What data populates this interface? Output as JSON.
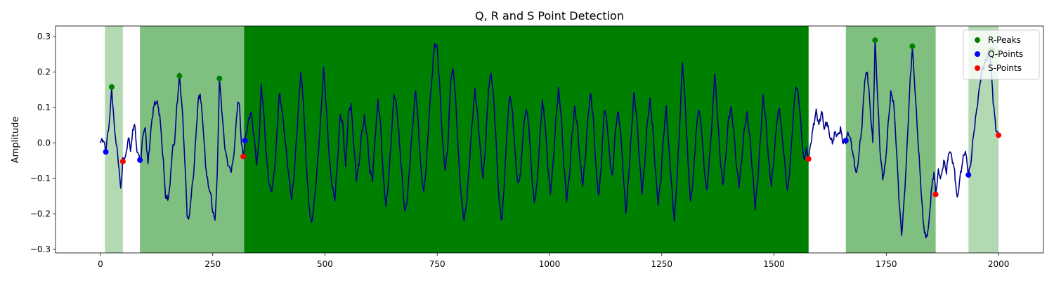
{
  "chart_data": {
    "type": "line",
    "title": "Q, R and S Point Detection",
    "xlabel": "",
    "ylabel": "Amplitude",
    "xlim": [
      -100,
      2100
    ],
    "ylim": [
      -0.31,
      0.33
    ],
    "xticks": [
      0,
      250,
      500,
      750,
      1000,
      1250,
      1500,
      1750,
      2000
    ],
    "yticks": [
      -0.3,
      -0.2,
      -0.1,
      0.0,
      0.1,
      0.2,
      0.3
    ],
    "ytick_labels": [
      "−0.3",
      "−0.2",
      "−0.1",
      "0.0",
      "0.1",
      "0.2",
      "0.3"
    ],
    "grid": false,
    "legend_position": "top-right",
    "signal_color": "#00008b",
    "spans": [
      {
        "x0": 10,
        "x1": 50,
        "opacity": 0.3
      },
      {
        "x0": 88,
        "x1": 320,
        "opacity": 0.5
      },
      {
        "x0": 320,
        "x1": 1577,
        "opacity": 1.0
      },
      {
        "x0": 1660,
        "x1": 1860,
        "opacity": 0.5
      },
      {
        "x0": 1933,
        "x1": 2000,
        "opacity": 0.3
      }
    ],
    "signal_keypoints": [
      [
        0,
        0.0
      ],
      [
        5,
        0.012
      ],
      [
        8,
        0.0
      ],
      [
        12,
        -0.02
      ],
      [
        18,
        0.04
      ],
      [
        22,
        0.09
      ],
      [
        25,
        0.158
      ],
      [
        30,
        0.06
      ],
      [
        35,
        0.0
      ],
      [
        40,
        -0.05
      ],
      [
        45,
        -0.13
      ],
      [
        50,
        -0.05
      ],
      [
        58,
        -0.03
      ],
      [
        62,
        0.02
      ],
      [
        67,
        -0.02
      ],
      [
        72,
        0.03
      ],
      [
        76,
        0.06
      ],
      [
        80,
        -0.01
      ],
      [
        86,
        -0.04
      ],
      [
        90,
        -0.05
      ],
      [
        95,
        0.03
      ],
      [
        100,
        0.04
      ],
      [
        106,
        -0.06
      ],
      [
        112,
        0.03
      ],
      [
        118,
        0.1
      ],
      [
        125,
        0.12
      ],
      [
        132,
        0.08
      ],
      [
        140,
        -0.05
      ],
      [
        145,
        -0.15
      ],
      [
        150,
        -0.16
      ],
      [
        155,
        -0.12
      ],
      [
        160,
        -0.02
      ],
      [
        165,
        0.0
      ],
      [
        170,
        0.1
      ],
      [
        176,
        0.189
      ],
      [
        182,
        0.1
      ],
      [
        188,
        -0.05
      ],
      [
        193,
        -0.2
      ],
      [
        197,
        -0.22
      ],
      [
        202,
        -0.15
      ],
      [
        208,
        -0.08
      ],
      [
        214,
        0.05
      ],
      [
        218,
        0.12
      ],
      [
        222,
        0.14
      ],
      [
        228,
        0.06
      ],
      [
        234,
        -0.06
      ],
      [
        240,
        -0.12
      ],
      [
        245,
        -0.14
      ],
      [
        250,
        -0.19
      ],
      [
        255,
        -0.22
      ],
      [
        260,
        -0.1
      ],
      [
        265,
        0.182
      ],
      [
        270,
        0.1
      ],
      [
        276,
        0.0
      ],
      [
        282,
        -0.05
      ],
      [
        290,
        -0.08
      ],
      [
        296,
        -0.05
      ],
      [
        302,
        0.05
      ],
      [
        306,
        0.12
      ],
      [
        310,
        0.1
      ],
      [
        314,
        0.0
      ],
      [
        318,
        -0.038
      ],
      [
        322,
        0.007
      ],
      [
        328,
        0.05
      ],
      [
        335,
        0.09
      ],
      [
        342,
        0.02
      ],
      [
        348,
        -0.06
      ],
      [
        353,
        0.0
      ],
      [
        358,
        0.16
      ],
      [
        363,
        0.1
      ],
      [
        368,
        -0.01
      ],
      [
        374,
        -0.1
      ],
      [
        380,
        -0.14
      ],
      [
        386,
        -0.1
      ],
      [
        392,
        0.0
      ],
      [
        398,
        0.14
      ],
      [
        404,
        0.1
      ],
      [
        412,
        0.0
      ],
      [
        420,
        -0.1
      ],
      [
        426,
        -0.16
      ],
      [
        432,
        -0.08
      ],
      [
        440,
        0.08
      ],
      [
        446,
        0.2
      ],
      [
        452,
        0.12
      ],
      [
        458,
        -0.05
      ],
      [
        464,
        -0.17
      ],
      [
        470,
        -0.23
      ],
      [
        476,
        -0.17
      ],
      [
        484,
        -0.05
      ],
      [
        490,
        0.06
      ],
      [
        497,
        0.21
      ],
      [
        503,
        0.1
      ],
      [
        510,
        -0.05
      ],
      [
        516,
        -0.12
      ],
      [
        522,
        -0.16
      ],
      [
        528,
        -0.05
      ],
      [
        534,
        0.08
      ],
      [
        540,
        0.05
      ],
      [
        546,
        -0.07
      ],
      [
        552,
        0.08
      ],
      [
        558,
        0.11
      ],
      [
        564,
        0.0
      ],
      [
        570,
        -0.1
      ],
      [
        576,
        -0.06
      ],
      [
        582,
        0.03
      ],
      [
        588,
        0.07
      ],
      [
        594,
        0.02
      ],
      [
        600,
        -0.08
      ],
      [
        606,
        -0.1
      ],
      [
        612,
        0.02
      ],
      [
        618,
        0.12
      ],
      [
        624,
        0.05
      ],
      [
        630,
        -0.1
      ],
      [
        636,
        -0.18
      ],
      [
        642,
        -0.1
      ],
      [
        648,
        0.02
      ],
      [
        654,
        0.14
      ],
      [
        660,
        0.1
      ],
      [
        666,
        0.0
      ],
      [
        672,
        -0.1
      ],
      [
        678,
        -0.2
      ],
      [
        684,
        -0.15
      ],
      [
        690,
        -0.04
      ],
      [
        696,
        0.06
      ],
      [
        702,
        0.15
      ],
      [
        708,
        0.05
      ],
      [
        714,
        -0.08
      ],
      [
        720,
        -0.14
      ],
      [
        726,
        -0.06
      ],
      [
        732,
        0.08
      ],
      [
        738,
        0.18
      ],
      [
        744,
        0.28
      ],
      [
        750,
        0.27
      ],
      [
        756,
        0.15
      ],
      [
        762,
        0.0
      ],
      [
        768,
        -0.08
      ],
      [
        774,
        0.0
      ],
      [
        780,
        0.18
      ],
      [
        786,
        0.21
      ],
      [
        792,
        0.1
      ],
      [
        798,
        -0.05
      ],
      [
        804,
        -0.16
      ],
      [
        810,
        -0.22
      ],
      [
        816,
        -0.16
      ],
      [
        822,
        -0.05
      ],
      [
        828,
        0.06
      ],
      [
        834,
        0.15
      ],
      [
        840,
        0.08
      ],
      [
        846,
        -0.02
      ],
      [
        852,
        -0.1
      ],
      [
        858,
        0.0
      ],
      [
        864,
        0.15
      ],
      [
        870,
        0.2
      ],
      [
        876,
        0.12
      ],
      [
        882,
        -0.02
      ],
      [
        888,
        -0.17
      ],
      [
        894,
        -0.22
      ],
      [
        900,
        -0.1
      ],
      [
        906,
        0.05
      ],
      [
        912,
        0.14
      ],
      [
        918,
        0.08
      ],
      [
        924,
        -0.04
      ],
      [
        930,
        -0.12
      ],
      [
        936,
        -0.08
      ],
      [
        942,
        0.04
      ],
      [
        948,
        0.1
      ],
      [
        954,
        0.05
      ],
      [
        960,
        -0.08
      ],
      [
        966,
        -0.17
      ],
      [
        972,
        -0.12
      ],
      [
        978,
        0.0
      ],
      [
        984,
        0.12
      ],
      [
        990,
        0.06
      ],
      [
        996,
        -0.06
      ],
      [
        1002,
        -0.14
      ],
      [
        1008,
        -0.06
      ],
      [
        1014,
        0.06
      ],
      [
        1020,
        0.15
      ],
      [
        1026,
        0.08
      ],
      [
        1032,
        -0.06
      ],
      [
        1038,
        -0.16
      ],
      [
        1044,
        -0.1
      ],
      [
        1050,
        0.02
      ],
      [
        1056,
        0.1
      ],
      [
        1062,
        0.05
      ],
      [
        1068,
        -0.05
      ],
      [
        1074,
        -0.12
      ],
      [
        1080,
        -0.04
      ],
      [
        1086,
        0.08
      ],
      [
        1092,
        0.14
      ],
      [
        1098,
        0.06
      ],
      [
        1104,
        -0.08
      ],
      [
        1110,
        -0.15
      ],
      [
        1116,
        -0.05
      ],
      [
        1122,
        0.1
      ],
      [
        1128,
        0.06
      ],
      [
        1134,
        -0.04
      ],
      [
        1140,
        -0.1
      ],
      [
        1146,
        0.02
      ],
      [
        1152,
        0.09
      ],
      [
        1158,
        0.04
      ],
      [
        1164,
        -0.08
      ],
      [
        1170,
        -0.2
      ],
      [
        1176,
        -0.1
      ],
      [
        1182,
        0.02
      ],
      [
        1188,
        0.14
      ],
      [
        1194,
        0.08
      ],
      [
        1200,
        -0.04
      ],
      [
        1206,
        -0.14
      ],
      [
        1212,
        -0.06
      ],
      [
        1218,
        0.06
      ],
      [
        1224,
        0.12
      ],
      [
        1230,
        0.04
      ],
      [
        1236,
        -0.08
      ],
      [
        1242,
        -0.17
      ],
      [
        1248,
        -0.1
      ],
      [
        1254,
        0.02
      ],
      [
        1260,
        0.1
      ],
      [
        1266,
        -0.02
      ],
      [
        1272,
        -0.12
      ],
      [
        1278,
        -0.22
      ],
      [
        1284,
        -0.1
      ],
      [
        1290,
        0.05
      ],
      [
        1296,
        0.23
      ],
      [
        1302,
        0.12
      ],
      [
        1308,
        -0.04
      ],
      [
        1314,
        -0.17
      ],
      [
        1320,
        -0.1
      ],
      [
        1326,
        0.02
      ],
      [
        1332,
        0.1
      ],
      [
        1338,
        0.05
      ],
      [
        1344,
        -0.06
      ],
      [
        1350,
        -0.14
      ],
      [
        1356,
        -0.05
      ],
      [
        1362,
        0.06
      ],
      [
        1368,
        0.2
      ],
      [
        1374,
        0.08
      ],
      [
        1380,
        -0.04
      ],
      [
        1386,
        -0.12
      ],
      [
        1392,
        -0.05
      ],
      [
        1398,
        0.06
      ],
      [
        1404,
        0.1
      ],
      [
        1410,
        0.04
      ],
      [
        1416,
        -0.06
      ],
      [
        1422,
        -0.12
      ],
      [
        1428,
        -0.05
      ],
      [
        1434,
        0.04
      ],
      [
        1440,
        0.08
      ],
      [
        1446,
        0.02
      ],
      [
        1452,
        -0.08
      ],
      [
        1458,
        -0.18
      ],
      [
        1464,
        -0.1
      ],
      [
        1470,
        0.02
      ],
      [
        1476,
        0.13
      ],
      [
        1482,
        0.06
      ],
      [
        1488,
        -0.05
      ],
      [
        1494,
        -0.12
      ],
      [
        1500,
        -0.04
      ],
      [
        1506,
        0.06
      ],
      [
        1512,
        0.1
      ],
      [
        1518,
        0.02
      ],
      [
        1524,
        -0.06
      ],
      [
        1530,
        -0.14
      ],
      [
        1536,
        -0.06
      ],
      [
        1542,
        0.06
      ],
      [
        1548,
        0.16
      ],
      [
        1554,
        0.14
      ],
      [
        1560,
        0.05
      ],
      [
        1566,
        -0.05
      ],
      [
        1572,
        -0.02
      ],
      [
        1577,
        -0.045
      ],
      [
        1582,
        0.0
      ],
      [
        1588,
        0.05
      ],
      [
        1594,
        0.09
      ],
      [
        1600,
        0.05
      ],
      [
        1606,
        0.09
      ],
      [
        1612,
        0.04
      ],
      [
        1618,
        0.06
      ],
      [
        1624,
        0.02
      ],
      [
        1630,
        0.0
      ],
      [
        1636,
        0.03
      ],
      [
        1642,
        0.02
      ],
      [
        1648,
        0.04
      ],
      [
        1654,
        0.0
      ],
      [
        1660,
        0.007
      ],
      [
        1666,
        0.03
      ],
      [
        1672,
        0.0
      ],
      [
        1678,
        -0.05
      ],
      [
        1684,
        -0.09
      ],
      [
        1690,
        -0.02
      ],
      [
        1696,
        0.05
      ],
      [
        1702,
        0.18
      ],
      [
        1708,
        0.2
      ],
      [
        1714,
        0.1
      ],
      [
        1720,
        0.0
      ],
      [
        1725,
        0.29
      ],
      [
        1730,
        0.15
      ],
      [
        1736,
        -0.02
      ],
      [
        1742,
        -0.1
      ],
      [
        1748,
        -0.06
      ],
      [
        1754,
        0.05
      ],
      [
        1760,
        0.14
      ],
      [
        1766,
        0.12
      ],
      [
        1772,
        0.0
      ],
      [
        1778,
        -0.15
      ],
      [
        1784,
        -0.26
      ],
      [
        1790,
        -0.16
      ],
      [
        1796,
        -0.02
      ],
      [
        1802,
        0.15
      ],
      [
        1808,
        0.27
      ],
      [
        1814,
        0.15
      ],
      [
        1820,
        0.02
      ],
      [
        1826,
        -0.1
      ],
      [
        1832,
        -0.22
      ],
      [
        1838,
        -0.27
      ],
      [
        1844,
        -0.24
      ],
      [
        1850,
        -0.14
      ],
      [
        1856,
        -0.08
      ],
      [
        1860,
        -0.145
      ],
      [
        1866,
        -0.08
      ],
      [
        1872,
        -0.1
      ],
      [
        1878,
        -0.05
      ],
      [
        1884,
        -0.08
      ],
      [
        1890,
        -0.02
      ],
      [
        1896,
        -0.04
      ],
      [
        1902,
        -0.08
      ],
      [
        1908,
        -0.16
      ],
      [
        1914,
        -0.1
      ],
      [
        1920,
        -0.05
      ],
      [
        1926,
        -0.02
      ],
      [
        1933,
        -0.09
      ],
      [
        1938,
        -0.06
      ],
      [
        1944,
        0.02
      ],
      [
        1950,
        0.08
      ],
      [
        1956,
        0.14
      ],
      [
        1962,
        0.2
      ],
      [
        1968,
        0.22
      ],
      [
        1974,
        0.24
      ],
      [
        1980,
        0.26
      ],
      [
        1984,
        0.2
      ],
      [
        1988,
        0.12
      ],
      [
        1994,
        0.04
      ],
      [
        2000,
        0.022
      ]
    ],
    "series": [
      {
        "name": "R-Peaks",
        "color": "#008000",
        "x": [
          25,
          176,
          265,
          1725,
          1808,
          1985
        ],
        "y": [
          0.158,
          0.189,
          0.182,
          0.29,
          0.273,
          0.262
        ]
      },
      {
        "name": "Q-Points",
        "color": "#0000ff",
        "x": [
          12,
          88,
          322,
          1660,
          1933
        ],
        "y": [
          -0.025,
          -0.048,
          0.007,
          0.007,
          -0.09
        ]
      },
      {
        "name": "S-Points",
        "color": "#ff0000",
        "x": [
          50,
          318,
          1577,
          1860,
          2000
        ],
        "y": [
          -0.052,
          -0.038,
          -0.045,
          -0.145,
          0.022
        ]
      }
    ]
  }
}
